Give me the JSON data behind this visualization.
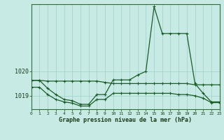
{
  "title": "Graphe pression niveau de la mer (hPa)",
  "bg_color": "#c8eae4",
  "grid_color": "#9ecfca",
  "line_color": "#1a5c28",
  "xlim": [
    0,
    23
  ],
  "ylim": [
    1018.45,
    1022.75
  ],
  "yticks": [
    1019,
    1020
  ],
  "xticks": [
    0,
    1,
    2,
    3,
    4,
    5,
    6,
    7,
    8,
    9,
    10,
    11,
    12,
    13,
    14,
    15,
    16,
    17,
    18,
    19,
    20,
    21,
    22,
    23
  ],
  "upper_line": [
    1019.63,
    1019.63,
    1019.6,
    1019.6,
    1019.6,
    1019.6,
    1019.6,
    1019.6,
    1019.6,
    1019.55,
    1019.5,
    1019.5,
    1019.5,
    1019.5,
    1019.5,
    1019.5,
    1019.5,
    1019.5,
    1019.5,
    1019.5,
    1019.45,
    1019.45,
    1019.45,
    1019.45
  ],
  "main_line": [
    1019.63,
    1019.63,
    1019.3,
    1019.05,
    1018.85,
    1018.8,
    1018.65,
    1018.65,
    1019.05,
    1019.05,
    1019.65,
    1019.65,
    1019.65,
    1019.85,
    1020.0,
    1022.65,
    1021.55,
    1021.55,
    1021.55,
    1021.55,
    1019.5,
    1019.1,
    1018.75,
    1018.75
  ],
  "lower_line": [
    1019.35,
    1019.35,
    1019.05,
    1018.85,
    1018.75,
    1018.7,
    1018.58,
    1018.58,
    1018.85,
    1018.85,
    1019.1,
    1019.1,
    1019.1,
    1019.1,
    1019.1,
    1019.1,
    1019.1,
    1019.1,
    1019.05,
    1019.05,
    1019.0,
    1018.9,
    1018.72,
    1018.72
  ]
}
